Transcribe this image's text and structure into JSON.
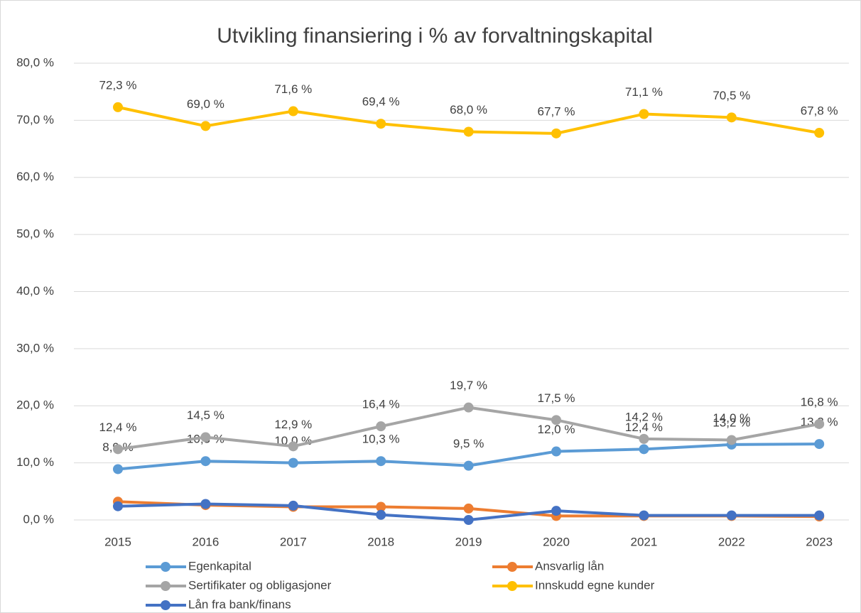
{
  "chart_data": {
    "type": "line",
    "title": "Utvikling finansiering i % av forvaltningskapital",
    "categories": [
      "2015",
      "2016",
      "2017",
      "2018",
      "2019",
      "2020",
      "2021",
      "2022",
      "2023"
    ],
    "ylim": [
      0,
      80
    ],
    "yticks": [
      {
        "value": 0,
        "label": "0,0 %"
      },
      {
        "value": 10,
        "label": "10,0 %"
      },
      {
        "value": 20,
        "label": "20,0 %"
      },
      {
        "value": 30,
        "label": "30,0 %"
      },
      {
        "value": 40,
        "label": "40,0 %"
      },
      {
        "value": 50,
        "label": "50,0 %"
      },
      {
        "value": 60,
        "label": "60,0 %"
      },
      {
        "value": 70,
        "label": "70,0 %"
      },
      {
        "value": 80,
        "label": "80,0 %"
      }
    ],
    "grid": true,
    "legend": "bottom",
    "series": [
      {
        "name": "Egenkapital",
        "color": "#5b9bd5",
        "values": [
          8.9,
          10.3,
          10.0,
          10.3,
          9.5,
          12.0,
          12.4,
          13.2,
          13.3
        ],
        "value_labels": [
          "8,9 %",
          "10,3 %",
          "10,0 %",
          "10,3 %",
          "9,5 %",
          "12,0 %",
          "12,4 %",
          "13,2 %",
          "13,3 %"
        ]
      },
      {
        "name": "Ansvarlig lån",
        "color": "#ed7d31",
        "values": [
          3.2,
          2.6,
          2.3,
          2.3,
          2.0,
          0.7,
          0.7,
          0.7,
          0.6
        ]
      },
      {
        "name": "Sertifikater og obligasjoner",
        "color": "#a5a5a5",
        "values": [
          12.4,
          14.5,
          12.9,
          16.4,
          19.7,
          17.5,
          14.2,
          14.0,
          16.8
        ],
        "value_labels": [
          "12,4 %",
          "14,5 %",
          "12,9 %",
          "16,4 %",
          "19,7 %",
          "17,5 %",
          "14,2 %",
          "14,0 %",
          "16,8 %"
        ]
      },
      {
        "name": "Innskudd egne kunder",
        "color": "#ffc000",
        "values": [
          72.3,
          69.0,
          71.6,
          69.4,
          68.0,
          67.7,
          71.1,
          70.5,
          67.8
        ],
        "value_labels": [
          "72,3 %",
          "69,0 %",
          "71,6 %",
          "69,4 %",
          "68,0 %",
          "67,7 %",
          "71,1 %",
          "70,5 %",
          "67,8 %"
        ]
      },
      {
        "name": "Lån fra bank/finans",
        "color": "#4472c4",
        "values": [
          2.4,
          2.8,
          2.5,
          0.9,
          0.0,
          1.6,
          0.8,
          0.8,
          0.8
        ]
      }
    ]
  }
}
